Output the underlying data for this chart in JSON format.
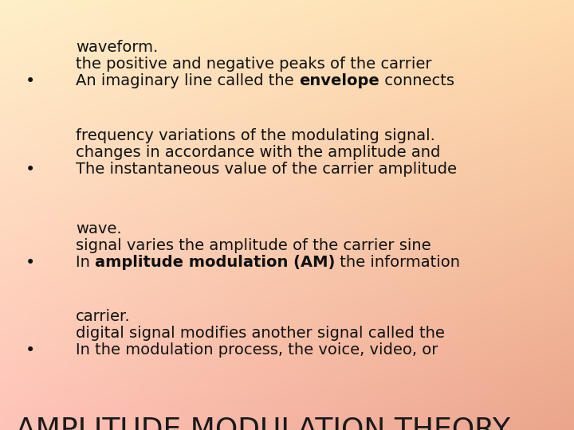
{
  "title": "AMPLITUDE MODULATION THEORY",
  "title_fontsize": 26,
  "title_color": "#1a1a1a",
  "body_fontsize": 14,
  "text_color": "#111111",
  "bg_tl": [
    255,
    240,
    200
  ],
  "bg_tr": [
    255,
    220,
    175
  ],
  "bg_bl": [
    255,
    195,
    185
  ],
  "bg_br": [
    235,
    165,
    140
  ],
  "bullet1_lines": [
    "In the modulation process, the voice, video, or",
    "digital signal modifies another signal called the",
    "carrier."
  ],
  "bullet2_line1_pre": "In ",
  "bullet2_line1_bold": "amplitude modulation (AM)",
  "bullet2_line1_post": " the information",
  "bullet2_lines_rest": [
    "signal varies the amplitude of the carrier sine",
    "wave."
  ],
  "bullet3_lines": [
    "The instantaneous value of the carrier amplitude",
    "changes in accordance with the amplitude and",
    "frequency variations of the modulating signal."
  ],
  "bullet4_line1_pre": "An imaginary line called the ",
  "bullet4_line1_bold": "envelope",
  "bullet4_line1_post": " connects",
  "bullet4_lines_rest": [
    "the positive and negative peaks of the carrier",
    "waveform."
  ]
}
